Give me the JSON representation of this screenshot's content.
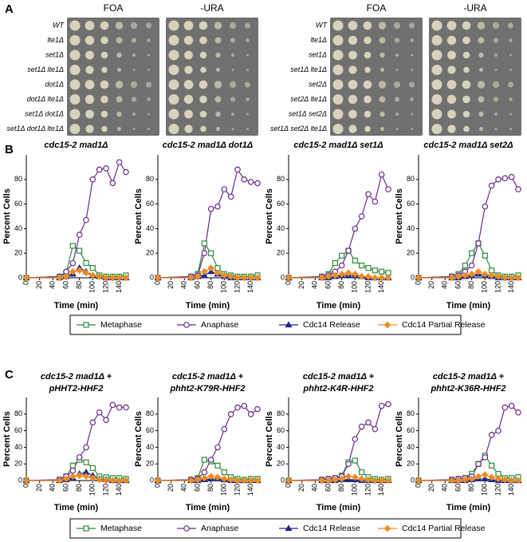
{
  "panel_labels": [
    "A",
    "B",
    "C"
  ],
  "plates": [
    {
      "headers": [
        "FOA",
        "-URA"
      ],
      "rows": [
        "WT",
        "lte1Δ",
        "set1Δ",
        "set1Δ lte1Δ",
        "dot1Δ",
        "dot1Δ lte1Δ",
        "set1Δ dot1Δ",
        "set1Δ dot1Δ lte1Δ"
      ]
    },
    {
      "headers": [
        "FOA",
        "-URA"
      ],
      "rows": [
        "WT",
        "lte1Δ",
        "set1Δ",
        "set1Δ lte1Δ",
        "set2Δ",
        "set2Δ lte1Δ",
        "set1Δ set2Δ",
        "set1Δ set2Δ lte1Δ"
      ]
    }
  ],
  "chart_data": [
    {
      "type": "line",
      "title": [
        "cdc15-2 mad1Δ"
      ],
      "xlabel": "Time (min)",
      "ylabel": "Percent Cells",
      "x": [
        0,
        50,
        60,
        70,
        80,
        90,
        100,
        110,
        120,
        130,
        140,
        150
      ],
      "xlim": [
        0,
        150
      ],
      "xticks": [
        0,
        20,
        40,
        60,
        80,
        100,
        120,
        140
      ],
      "ylim": [
        0,
        100
      ],
      "yticks": [
        0,
        20,
        40,
        60,
        80
      ],
      "series": [
        {
          "name": "Metaphase",
          "color": "#2e8b3e",
          "marker": "square",
          "values": [
            0,
            1,
            4,
            26,
            22,
            12,
            8,
            2,
            1,
            1,
            1,
            2
          ]
        },
        {
          "name": "Anaphase",
          "color": "#6a2a8e",
          "marker": "circle",
          "values": [
            0,
            1,
            5,
            12,
            35,
            47,
            80,
            88,
            89,
            77,
            94,
            86
          ]
        },
        {
          "name": "Cdc14 Release",
          "color": "#1f2a8a",
          "marker": "triangle",
          "values": [
            0,
            0,
            1,
            3,
            8,
            5,
            2,
            1,
            0,
            0,
            0,
            0
          ]
        },
        {
          "name": "Cdc14 Partial Release",
          "color": "#f08c1e",
          "marker": "diamond",
          "values": [
            0,
            0,
            1,
            5,
            6,
            4,
            2,
            1,
            0,
            0,
            0,
            0
          ]
        }
      ]
    },
    {
      "type": "line",
      "title": [
        "cdc15-2 mad1Δ dot1Δ"
      ],
      "xlabel": "Time (min)",
      "ylabel": "Percent Cells",
      "x": [
        0,
        50,
        60,
        70,
        80,
        90,
        100,
        110,
        120,
        130,
        140,
        150
      ],
      "xlim": [
        0,
        150
      ],
      "xticks": [
        0,
        20,
        40,
        60,
        80,
        100,
        120,
        140
      ],
      "ylim": [
        0,
        100
      ],
      "yticks": [
        0,
        20,
        40,
        60,
        80
      ],
      "series": [
        {
          "name": "Metaphase",
          "color": "#2e8b3e",
          "marker": "square",
          "values": [
            0,
            1,
            3,
            28,
            20,
            8,
            3,
            2,
            1,
            1,
            1,
            2
          ]
        },
        {
          "name": "Anaphase",
          "color": "#6a2a8e",
          "marker": "circle",
          "values": [
            0,
            1,
            2,
            20,
            56,
            58,
            72,
            66,
            88,
            80,
            78,
            77
          ]
        },
        {
          "name": "Cdc14 Release",
          "color": "#1f2a8a",
          "marker": "triangle",
          "values": [
            0,
            0,
            1,
            2,
            5,
            3,
            1,
            0,
            0,
            0,
            0,
            0
          ]
        },
        {
          "name": "Cdc14 Partial Release",
          "color": "#f08c1e",
          "marker": "diamond",
          "values": [
            0,
            0,
            1,
            5,
            8,
            4,
            2,
            1,
            0,
            0,
            0,
            0
          ]
        }
      ]
    },
    {
      "type": "line",
      "title": [
        "cdc15-2 mad1Δ set1Δ"
      ],
      "xlabel": "Time (min)",
      "ylabel": "Percent Cells",
      "x": [
        0,
        50,
        60,
        70,
        80,
        90,
        100,
        110,
        120,
        130,
        140,
        150
      ],
      "xlim": [
        0,
        150
      ],
      "xticks": [
        0,
        20,
        40,
        60,
        80,
        100,
        120,
        140
      ],
      "ylim": [
        0,
        100
      ],
      "yticks": [
        0,
        20,
        40,
        60,
        80
      ],
      "series": [
        {
          "name": "Metaphase",
          "color": "#2e8b3e",
          "marker": "square",
          "values": [
            0,
            1,
            3,
            12,
            18,
            22,
            14,
            10,
            8,
            6,
            5,
            4
          ]
        },
        {
          "name": "Anaphase",
          "color": "#6a2a8e",
          "marker": "circle",
          "values": [
            0,
            1,
            2,
            5,
            10,
            22,
            40,
            50,
            68,
            62,
            84,
            72
          ]
        },
        {
          "name": "Cdc14 Release",
          "color": "#1f2a8a",
          "marker": "triangle",
          "values": [
            0,
            0,
            0,
            1,
            2,
            2,
            2,
            1,
            0,
            0,
            0,
            0
          ]
        },
        {
          "name": "Cdc14 Partial Release",
          "color": "#f08c1e",
          "marker": "diamond",
          "values": [
            0,
            0,
            1,
            2,
            3,
            4,
            3,
            1,
            1,
            0,
            0,
            0
          ]
        }
      ]
    },
    {
      "type": "line",
      "title": [
        "cdc15-2 mad1Δ set2Δ"
      ],
      "xlabel": "Time (min)",
      "ylabel": "Percent Cells",
      "x": [
        0,
        50,
        60,
        70,
        80,
        90,
        100,
        110,
        120,
        130,
        140,
        150
      ],
      "xlim": [
        0,
        150
      ],
      "xticks": [
        0,
        20,
        40,
        60,
        80,
        100,
        120,
        140
      ],
      "ylim": [
        0,
        100
      ],
      "yticks": [
        0,
        20,
        40,
        60,
        80
      ],
      "series": [
        {
          "name": "Metaphase",
          "color": "#2e8b3e",
          "marker": "square",
          "values": [
            0,
            1,
            3,
            10,
            20,
            28,
            18,
            6,
            2,
            1,
            1,
            2
          ]
        },
        {
          "name": "Anaphase",
          "color": "#6a2a8e",
          "marker": "circle",
          "values": [
            0,
            1,
            2,
            5,
            10,
            28,
            58,
            75,
            80,
            81,
            82,
            72
          ]
        },
        {
          "name": "Cdc14 Release",
          "color": "#1f2a8a",
          "marker": "triangle",
          "values": [
            0,
            0,
            0,
            1,
            2,
            3,
            2,
            1,
            0,
            0,
            0,
            0
          ]
        },
        {
          "name": "Cdc14 Partial Release",
          "color": "#f08c1e",
          "marker": "diamond",
          "values": [
            0,
            0,
            1,
            2,
            3,
            5,
            3,
            2,
            1,
            0,
            0,
            0
          ]
        }
      ]
    },
    {
      "type": "line",
      "title": [
        "cdc15-2 mad1Δ +",
        "pHHT2-HHF2"
      ],
      "xlabel": "Time (min)",
      "ylabel": "Percent Cells",
      "x": [
        0,
        50,
        60,
        70,
        80,
        90,
        100,
        110,
        120,
        130,
        140,
        150
      ],
      "xlim": [
        0,
        150
      ],
      "xticks": [
        0,
        20,
        40,
        60,
        80,
        100,
        120,
        140
      ],
      "ylim": [
        0,
        100
      ],
      "yticks": [
        0,
        20,
        40,
        60,
        80
      ],
      "series": [
        {
          "name": "Metaphase",
          "color": "#2e8b3e",
          "marker": "square",
          "values": [
            0,
            1,
            5,
            18,
            25,
            22,
            15,
            5,
            4,
            3,
            3,
            2
          ]
        },
        {
          "name": "Anaphase",
          "color": "#6a2a8e",
          "marker": "circle",
          "values": [
            0,
            1,
            5,
            12,
            28,
            40,
            70,
            82,
            73,
            91,
            88,
            88
          ]
        },
        {
          "name": "Cdc14 Release",
          "color": "#1f2a8a",
          "marker": "triangle",
          "values": [
            0,
            0,
            1,
            3,
            8,
            10,
            6,
            2,
            1,
            0,
            0,
            0
          ]
        },
        {
          "name": "Cdc14 Partial Release",
          "color": "#f08c1e",
          "marker": "diamond",
          "values": [
            0,
            0,
            2,
            5,
            6,
            5,
            3,
            1,
            0,
            0,
            0,
            0
          ]
        }
      ]
    },
    {
      "type": "line",
      "title": [
        "cdc15-2 mad1Δ +",
        "phht2-K79R-HHF2"
      ],
      "xlabel": "Time (min)",
      "ylabel": "Percent Cells",
      "x": [
        0,
        50,
        60,
        70,
        80,
        90,
        100,
        110,
        120,
        130,
        140,
        150
      ],
      "xlim": [
        0,
        150
      ],
      "xticks": [
        0,
        20,
        40,
        60,
        80,
        100,
        120,
        140
      ],
      "ylim": [
        0,
        100
      ],
      "yticks": [
        0,
        20,
        40,
        60,
        80
      ],
      "series": [
        {
          "name": "Metaphase",
          "color": "#2e8b3e",
          "marker": "square",
          "values": [
            0,
            1,
            3,
            25,
            23,
            18,
            10,
            4,
            2,
            1,
            2,
            2
          ]
        },
        {
          "name": "Anaphase",
          "color": "#6a2a8e",
          "marker": "circle",
          "values": [
            0,
            1,
            2,
            10,
            25,
            40,
            62,
            80,
            88,
            90,
            80,
            86
          ]
        },
        {
          "name": "Cdc14 Release",
          "color": "#1f2a8a",
          "marker": "triangle",
          "values": [
            0,
            0,
            0,
            1,
            2,
            2,
            1,
            0,
            0,
            0,
            0,
            0
          ]
        },
        {
          "name": "Cdc14 Partial Release",
          "color": "#f08c1e",
          "marker": "diamond",
          "values": [
            0,
            0,
            1,
            3,
            5,
            4,
            2,
            1,
            0,
            0,
            0,
            0
          ]
        }
      ]
    },
    {
      "type": "line",
      "title": [
        "cdc15-2 mad1Δ +",
        "phht2-K4R-HHF2"
      ],
      "xlabel": "Time (min)",
      "ylabel": "Percent Cells",
      "x": [
        0,
        50,
        60,
        70,
        80,
        90,
        100,
        110,
        120,
        130,
        140,
        150
      ],
      "xlim": [
        0,
        150
      ],
      "xticks": [
        0,
        20,
        40,
        60,
        80,
        100,
        120,
        140
      ],
      "ylim": [
        0,
        100
      ],
      "yticks": [
        0,
        20,
        40,
        60,
        80
      ],
      "series": [
        {
          "name": "Metaphase",
          "color": "#2e8b3e",
          "marker": "square",
          "values": [
            0,
            1,
            2,
            3,
            6,
            22,
            24,
            10,
            4,
            2,
            1,
            2
          ]
        },
        {
          "name": "Anaphase",
          "color": "#6a2a8e",
          "marker": "circle",
          "values": [
            0,
            1,
            2,
            3,
            5,
            20,
            50,
            65,
            70,
            62,
            90,
            92
          ]
        },
        {
          "name": "Cdc14 Release",
          "color": "#1f2a8a",
          "marker": "triangle",
          "values": [
            0,
            0,
            0,
            0,
            1,
            1,
            1,
            0,
            0,
            0,
            0,
            0
          ]
        },
        {
          "name": "Cdc14 Partial Release",
          "color": "#f08c1e",
          "marker": "diamond",
          "values": [
            0,
            0,
            0,
            1,
            2,
            5,
            4,
            2,
            1,
            0,
            0,
            0
          ]
        }
      ]
    },
    {
      "type": "line",
      "title": [
        "cdc15-2 mad1Δ +",
        "phht2-K36R-HHF2"
      ],
      "xlabel": "Time (min)",
      "ylabel": "Percent Cells",
      "x": [
        0,
        50,
        60,
        70,
        80,
        90,
        100,
        110,
        120,
        130,
        140,
        150
      ],
      "xlim": [
        0,
        150
      ],
      "xticks": [
        0,
        20,
        40,
        60,
        80,
        100,
        120,
        140
      ],
      "ylim": [
        0,
        100
      ],
      "yticks": [
        0,
        20,
        40,
        60,
        80
      ],
      "series": [
        {
          "name": "Metaphase",
          "color": "#2e8b3e",
          "marker": "square",
          "values": [
            0,
            1,
            2,
            3,
            8,
            20,
            30,
            18,
            8,
            3,
            3,
            4
          ]
        },
        {
          "name": "Anaphase",
          "color": "#6a2a8e",
          "marker": "circle",
          "values": [
            0,
            1,
            2,
            3,
            5,
            20,
            28,
            55,
            60,
            88,
            90,
            82
          ]
        },
        {
          "name": "Cdc14 Release",
          "color": "#1f2a8a",
          "marker": "triangle",
          "values": [
            0,
            0,
            0,
            0,
            1,
            2,
            2,
            1,
            0,
            0,
            0,
            0
          ]
        },
        {
          "name": "Cdc14 Partial Release",
          "color": "#f08c1e",
          "marker": "diamond",
          "values": [
            0,
            0,
            0,
            1,
            2,
            5,
            7,
            4,
            2,
            1,
            0,
            0
          ]
        }
      ]
    }
  ]
}
